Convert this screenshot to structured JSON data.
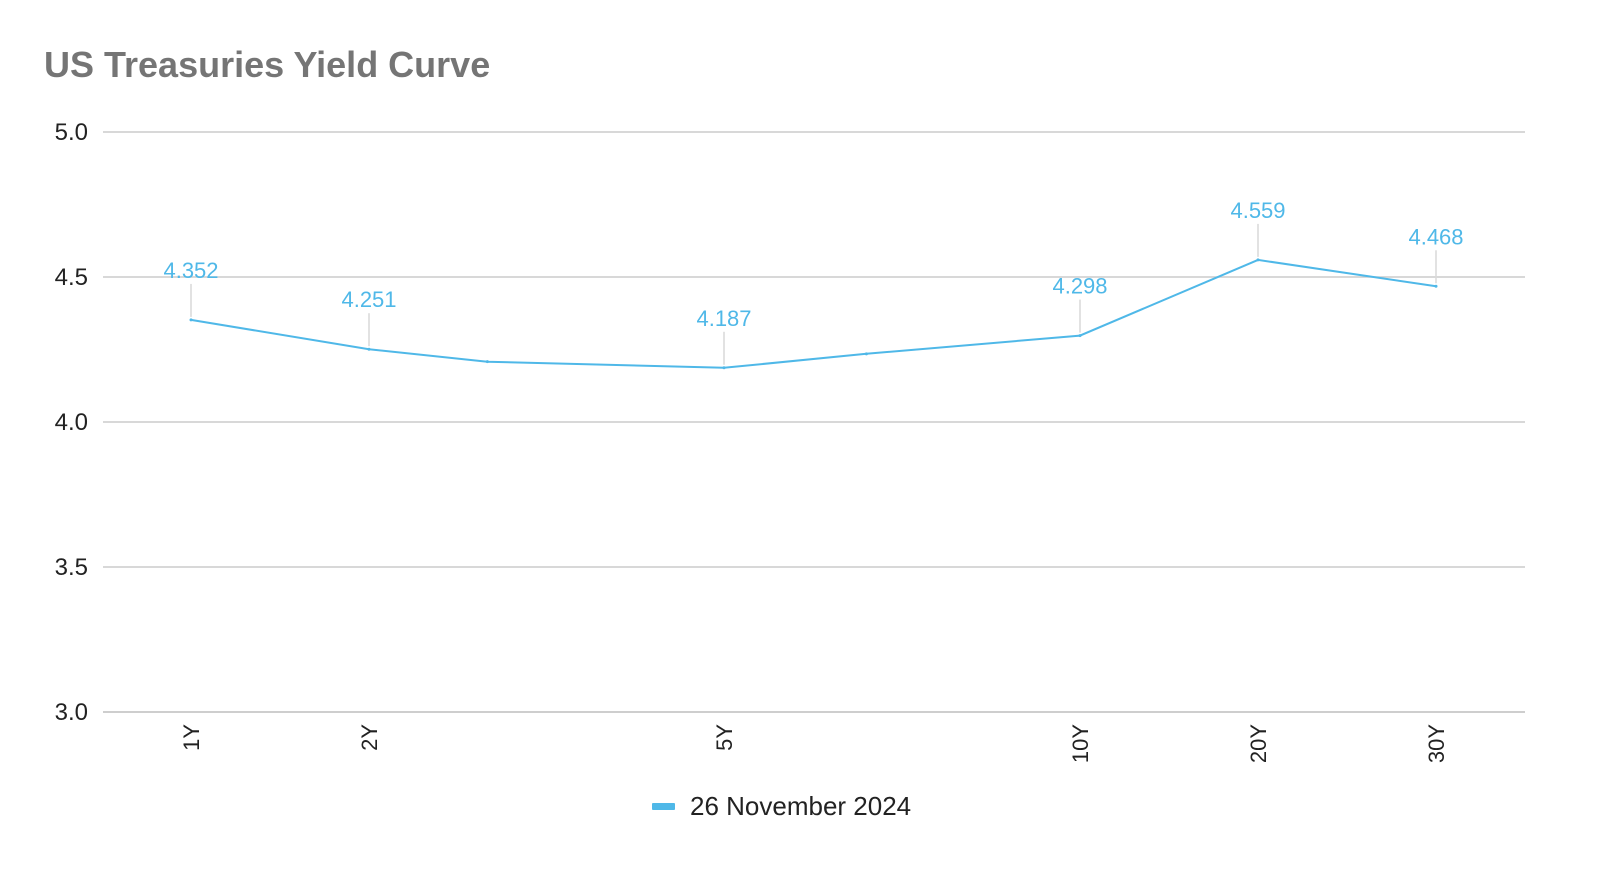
{
  "chart_data": {
    "type": "line",
    "title": "US Treasuries Yield Curve",
    "xlabel": "",
    "ylabel": "",
    "y_ticks": [
      "5.0",
      "4.5",
      "4.0",
      "3.5",
      "3.0"
    ],
    "ylim": [
      3.0,
      5.0
    ],
    "grid": true,
    "legend_position": "bottom",
    "series_color": "#4fb8e8",
    "x_tick_labels": [
      "1Y",
      "2Y",
      "5Y",
      "10Y",
      "20Y",
      "30Y"
    ],
    "series": [
      {
        "name": "26 November 2024",
        "points": [
          {
            "maturity_years": 1,
            "value": 4.352,
            "tick": "1Y",
            "label": "4.352"
          },
          {
            "maturity_years": 2,
            "value": 4.251,
            "tick": "2Y",
            "label": "4.251"
          },
          {
            "maturity_years": 3,
            "value": 4.208,
            "tick": "",
            "label": ""
          },
          {
            "maturity_years": 5,
            "value": 4.187,
            "tick": "5Y",
            "label": "4.187"
          },
          {
            "maturity_years": 7,
            "value": 4.235,
            "tick": "",
            "label": ""
          },
          {
            "maturity_years": 10,
            "value": 4.298,
            "tick": "10Y",
            "label": "4.298"
          },
          {
            "maturity_years": 20,
            "value": 4.559,
            "tick": "20Y",
            "label": "4.559"
          },
          {
            "maturity_years": 30,
            "value": 4.468,
            "tick": "30Y",
            "label": "4.468"
          }
        ]
      }
    ]
  }
}
